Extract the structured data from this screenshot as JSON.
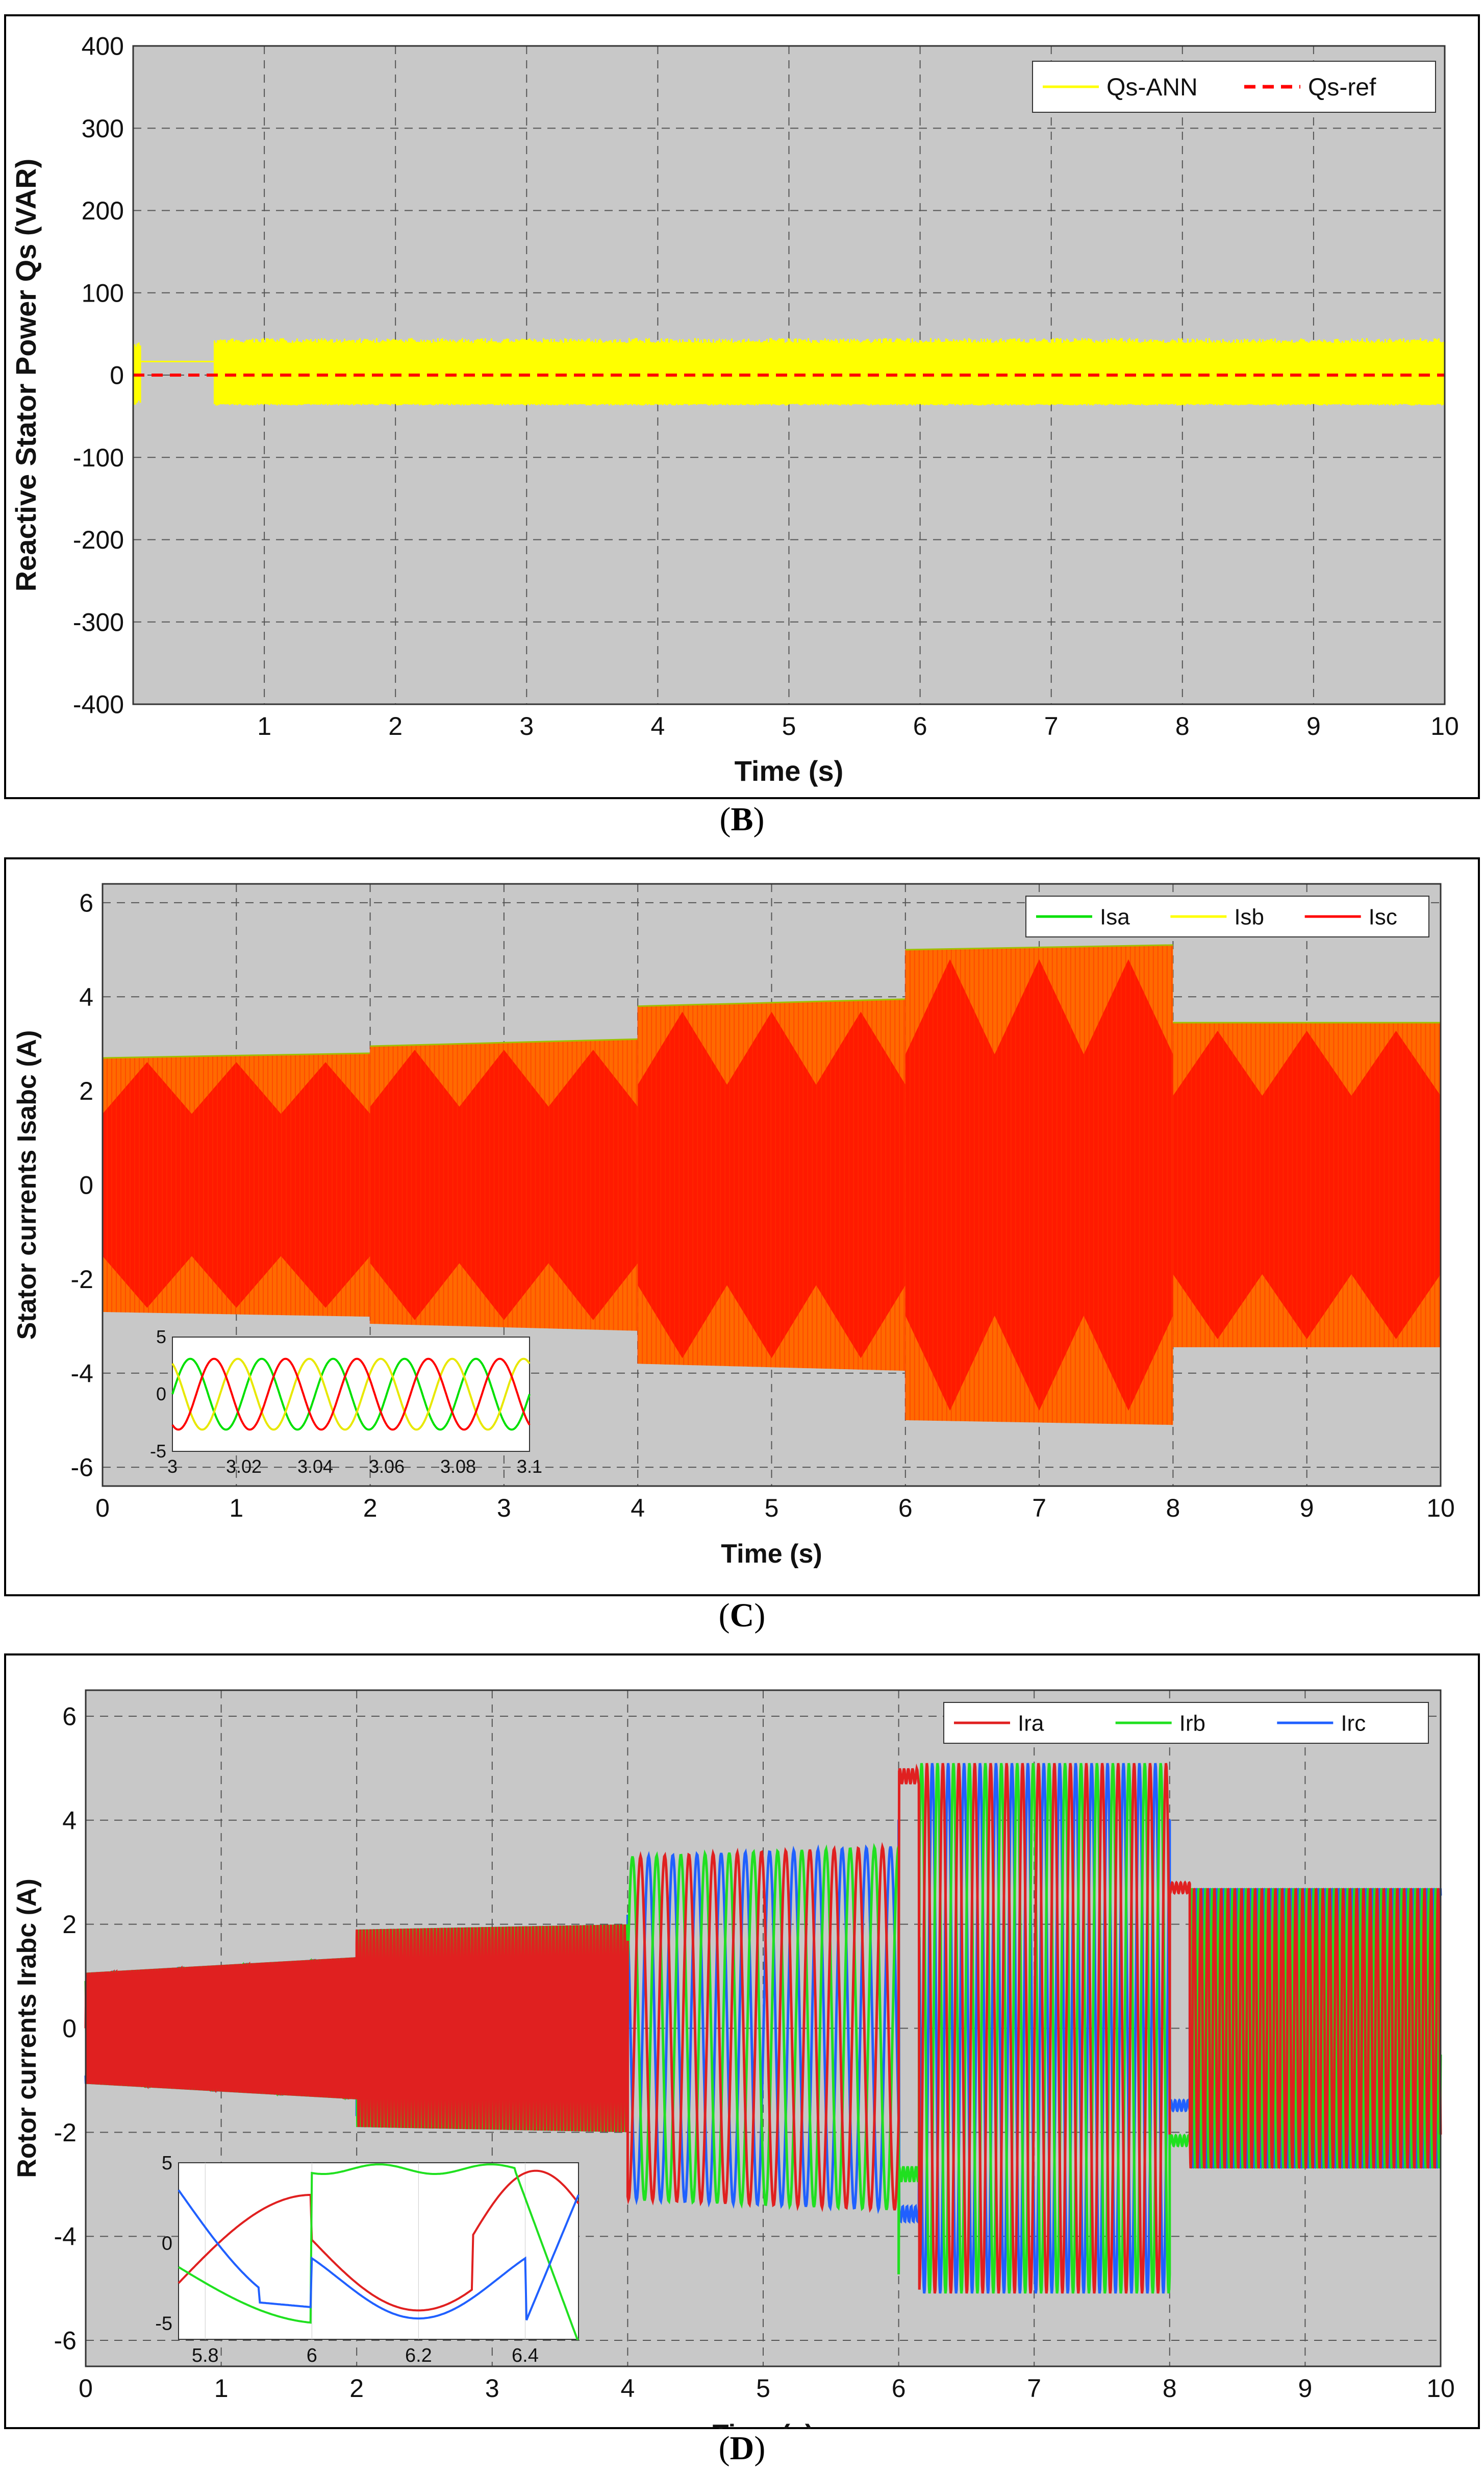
{
  "chart_data": [
    {
      "type": "line",
      "panel": "B",
      "xlabel": "Time (s)",
      "ylabel": "Reactive Stator Power Qs (VAR)",
      "xlim": [
        0,
        10
      ],
      "ylim": [
        -400,
        400
      ],
      "xticks": [
        1,
        2,
        3,
        4,
        5,
        6,
        7,
        8,
        9,
        10
      ],
      "yticks": [
        400,
        300,
        200,
        100,
        0,
        -100,
        -200,
        -300,
        -400
      ],
      "grid": true,
      "legend": "top-right",
      "series": [
        {
          "name": "Qs-ANN",
          "color": "#ffff00",
          "style": "solid",
          "mean": 5,
          "envelope": [
            [
              0.0,
              -35,
              40
            ],
            [
              0.02,
              -35,
              40
            ],
            [
              0.06,
              15,
              18
            ],
            [
              0.62,
              15,
              18
            ],
            [
              0.62,
              -35,
              45
            ],
            [
              10.0,
              -35,
              45
            ]
          ]
        },
        {
          "name": "Qs-ref",
          "color": "#ff0000",
          "style": "dashed",
          "x": [
            0,
            10
          ],
          "y": [
            0,
            0
          ]
        }
      ]
    },
    {
      "type": "line",
      "panel": "C",
      "xlabel": "Time (s)",
      "ylabel": "Stator currents Isabc (A)",
      "xlim": [
        0,
        10
      ],
      "ylim": [
        -6.4,
        6.4
      ],
      "xticks": [
        0,
        1,
        2,
        3,
        4,
        5,
        6,
        7,
        8,
        9,
        10
      ],
      "yticks": [
        6,
        4,
        2,
        0,
        -2,
        -4,
        -6
      ],
      "grid": true,
      "legend": "top-right",
      "series": [
        {
          "name": "Isa",
          "color": "#00e000"
        },
        {
          "name": "Isb",
          "color": "#ffff00"
        },
        {
          "name": "Isc",
          "color": "#ff0000"
        }
      ],
      "amplitude_segments": [
        {
          "t0": 0,
          "t1": 2,
          "a0": 2.7,
          "a1": 2.8
        },
        {
          "t0": 2,
          "t1": 4,
          "a0": 2.95,
          "a1": 3.1
        },
        {
          "t0": 4,
          "t1": 6,
          "a0": 3.8,
          "a1": 3.95
        },
        {
          "t0": 6,
          "t1": 8,
          "a0": 5.0,
          "a1": 5.1
        },
        {
          "t0": 8,
          "t1": 10,
          "a0": 3.45,
          "a1": 3.45
        }
      ],
      "inset": {
        "xlim": [
          3,
          3.1
        ],
        "ylim": [
          -5,
          5
        ],
        "xticks": [
          3,
          3.02,
          3.04,
          3.06,
          3.08,
          3.1
        ],
        "yticks": [
          5,
          0,
          -5
        ],
        "frequency_hz": 50,
        "amplitude": 3.1
      }
    },
    {
      "type": "line",
      "panel": "D",
      "xlabel": "Time (s)",
      "ylabel": "Rotor currents Irabc (A)",
      "xlim": [
        0,
        10
      ],
      "ylim": [
        -6.5,
        6.5
      ],
      "xticks": [
        0,
        1,
        2,
        3,
        4,
        5,
        6,
        7,
        8,
        9,
        10
      ],
      "yticks": [
        6,
        4,
        2,
        0,
        -2,
        -4,
        -6
      ],
      "grid": true,
      "legend": "top-right",
      "series": [
        {
          "name": "Ira",
          "color": "#e02020"
        },
        {
          "name": "Irb",
          "color": "#20e020"
        },
        {
          "name": "Irc",
          "color": "#2060ff"
        }
      ],
      "segments": [
        {
          "t0": 0,
          "t1": 2,
          "a0": 1.05,
          "a1": 1.35,
          "freq": 50
        },
        {
          "t0": 2,
          "t1": 4,
          "a0": 1.9,
          "a1": 2.0,
          "freq": 40
        },
        {
          "t0": 4,
          "t1": 6,
          "a0": 3.3,
          "a1": 3.5,
          "freq": 5.6
        },
        {
          "t0": 6,
          "t1": 8,
          "a0": 5.1,
          "a1": 5.1,
          "freq": 8.5
        },
        {
          "t0": 8,
          "t1": 10,
          "a0": 2.7,
          "a1": 2.7,
          "freq": 20
        }
      ],
      "inset": {
        "xlim": [
          5.75,
          6.5
        ],
        "ylim": [
          -6,
          5
        ],
        "xticks": [
          5.8,
          6,
          6.2,
          6.4
        ],
        "yticks": [
          5,
          0,
          -5
        ]
      }
    }
  ],
  "captions": [
    "B",
    "C",
    "D"
  ]
}
